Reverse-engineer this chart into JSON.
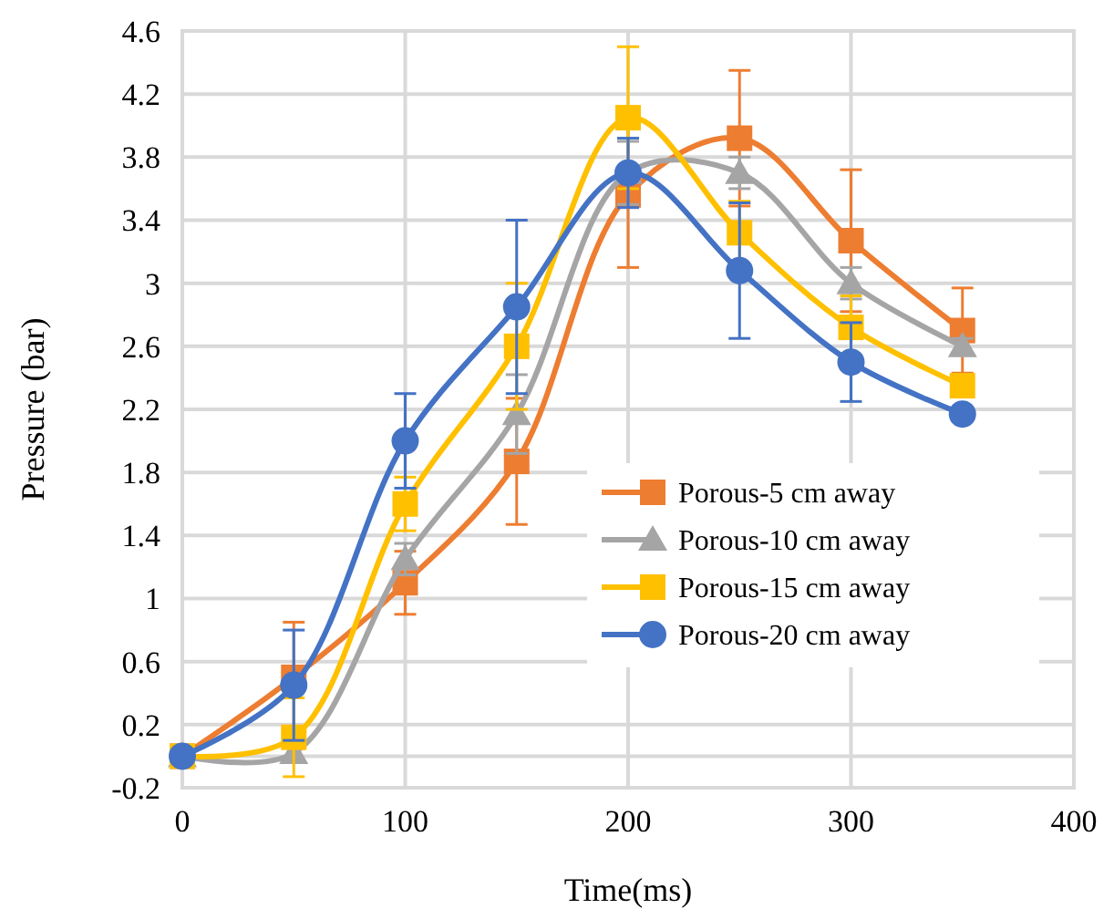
{
  "chart_data": {
    "type": "line",
    "xlabel": "Time(ms)",
    "ylabel": "Pressure (bar)",
    "x": [
      0,
      50,
      100,
      150,
      200,
      250,
      300,
      350
    ],
    "xlim": [
      0,
      400
    ],
    "xticks": [
      0,
      100,
      200,
      300,
      400
    ],
    "ylim": [
      -0.2,
      4.6
    ],
    "yticks": [
      -0.2,
      0.2,
      0.6,
      1,
      1.4,
      1.8,
      2.2,
      2.6,
      3,
      3.4,
      3.8,
      4.2,
      4.6
    ],
    "grid": true,
    "legend": "bottom right",
    "line_style": "solid",
    "series": [
      {
        "name": "Porous-5 cm away",
        "color": "#ed7d31",
        "marker": "square",
        "values": [
          0,
          0.5,
          1.1,
          1.87,
          3.56,
          3.92,
          3.27,
          2.7
        ],
        "errors": [
          null,
          0.35,
          0.2,
          0.4,
          0.46,
          0.43,
          0.45,
          0.27
        ]
      },
      {
        "name": "Porous-10 cm away",
        "color": "#a5a5a5",
        "marker": "triangle",
        "values": [
          0,
          0.02,
          1.25,
          2.17,
          3.7,
          3.7,
          3.0,
          2.6
        ],
        "errors": [
          null,
          null,
          0.1,
          0.25,
          0.2,
          0.1,
          0.1,
          0.05
        ]
      },
      {
        "name": "Porous-15 cm away",
        "color": "#ffc000",
        "marker": "square",
        "values": [
          0,
          0.12,
          1.6,
          2.6,
          4.05,
          3.32,
          2.72,
          2.35
        ],
        "errors": [
          null,
          0.25,
          0.17,
          0.4,
          0.45,
          0.2,
          0.2,
          null
        ]
      },
      {
        "name": "Porous-20 cm away",
        "color": "#4472c4",
        "marker": "circle",
        "values": [
          0,
          0.45,
          2.0,
          2.85,
          3.7,
          3.08,
          2.5,
          2.17
        ],
        "errors": [
          null,
          0.35,
          0.3,
          0.55,
          0.22,
          0.43,
          0.25,
          null
        ]
      }
    ]
  }
}
